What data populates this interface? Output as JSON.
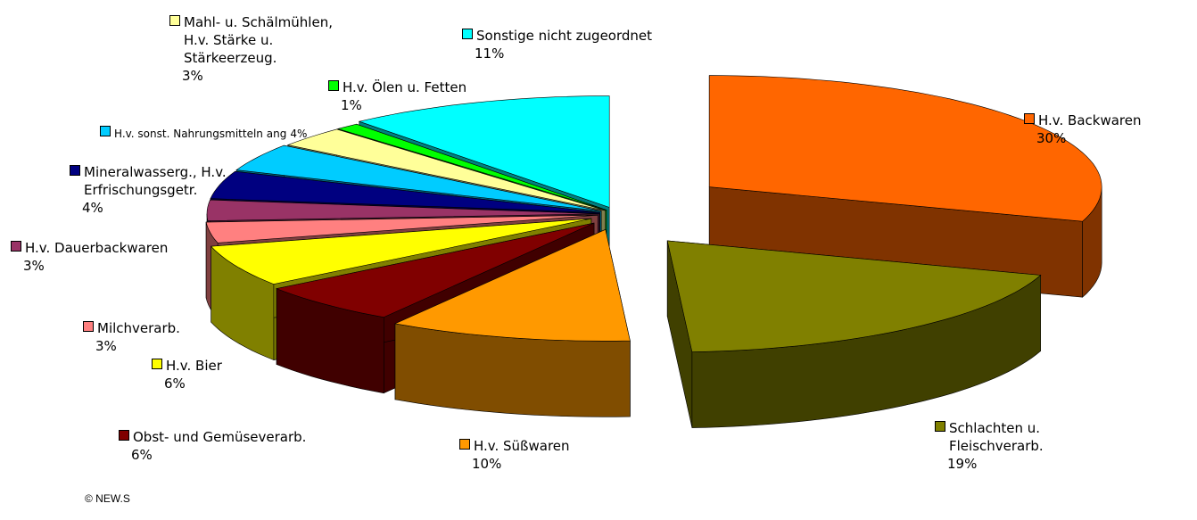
{
  "chart_data": {
    "type": "pie3d",
    "categories": [
      "H.v. Backwaren",
      "Schlachten u.\nFleischverarb.",
      "H.v. Süßwaren",
      "Obst- und Gemüseverarb.",
      "H.v. Bier",
      "Milchverarb.",
      "H.v. Dauerbackwaren",
      "Mineralwasserg., H.v.\nErfrischungsgetr.",
      "H.v. sonst. Nahrungsmitteln ang",
      "Mahl- u. Schälmühlen,\nH.v. Stärke u.\nStärkeerzeug.",
      "H.v. Ölen u. Fetten",
      "Sonstige nicht zugeordnet"
    ],
    "values": [
      30,
      19,
      10,
      6,
      6,
      3,
      3,
      4,
      4,
      3,
      1,
      11
    ],
    "value_labels": [
      "30%",
      "19%",
      "10%",
      "6%",
      "6%",
      "3%",
      "3%",
      "4%",
      "4%",
      "3%",
      "1%",
      "11%"
    ],
    "colors": [
      "#ff6600",
      "#808000",
      "#ff9900",
      "#800000",
      "#ffff00",
      "#ff8080",
      "#993366",
      "#000080",
      "#00ccff",
      "#ffff99",
      "#00ff00",
      "#00ffff"
    ],
    "footer": "© NEW.S"
  }
}
